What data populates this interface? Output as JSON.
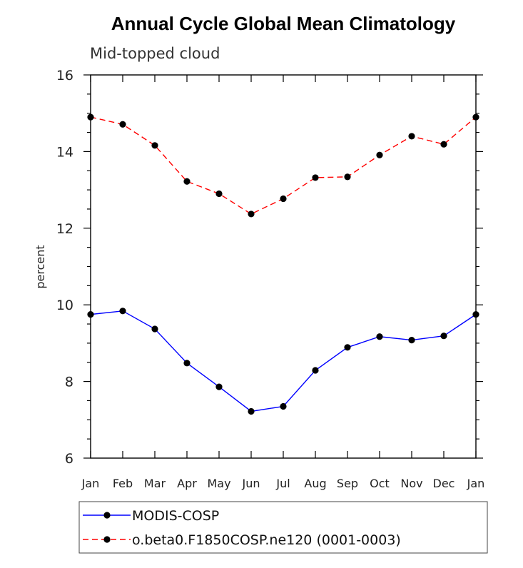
{
  "chart_data": {
    "type": "line",
    "title": "Annual Cycle Global Mean Climatology",
    "subtitle": "Mid-topped cloud",
    "ylabel": "percent",
    "xlabel": "",
    "ylim": [
      6,
      16
    ],
    "yticks": [
      6,
      8,
      10,
      12,
      14,
      16
    ],
    "categories": [
      "Jan",
      "Feb",
      "Mar",
      "Apr",
      "May",
      "Jun",
      "Jul",
      "Aug",
      "Sep",
      "Oct",
      "Nov",
      "Dec",
      "Jan"
    ],
    "series": [
      {
        "name": "MODIS-COSP",
        "color": "#0000ff",
        "dash": "solid",
        "values": [
          9.75,
          9.84,
          9.37,
          8.48,
          7.86,
          7.22,
          7.35,
          8.29,
          8.89,
          9.17,
          9.08,
          9.19,
          9.75
        ]
      },
      {
        "name": "o.beta0.F1850COSP.ne120 (0001-0003)",
        "color": "#ff0000",
        "dash": "dashed",
        "values": [
          14.9,
          14.71,
          14.16,
          13.22,
          12.9,
          12.37,
          12.77,
          13.32,
          13.34,
          13.91,
          14.4,
          14.19,
          14.9
        ]
      }
    ],
    "legend": "bottom"
  }
}
